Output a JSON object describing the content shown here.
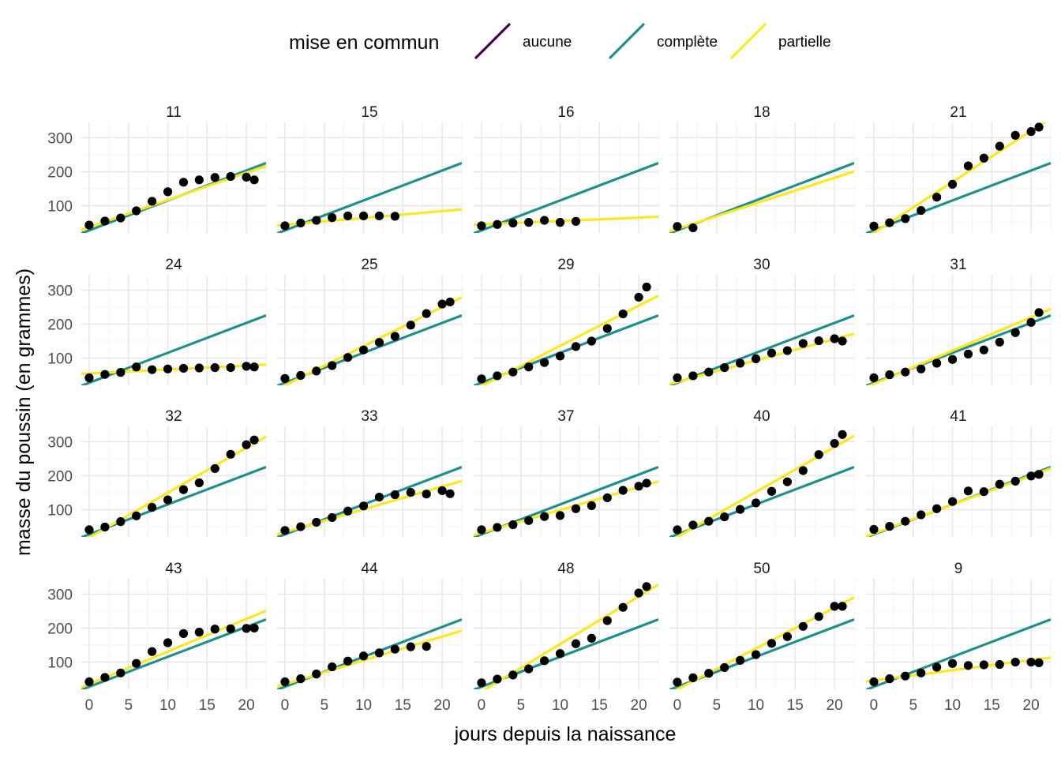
{
  "chart_data": {
    "type": "scatter",
    "facet_order": [
      "11",
      "15",
      "16",
      "18",
      "21",
      "24",
      "25",
      "29",
      "30",
      "31",
      "32",
      "33",
      "37",
      "40",
      "41",
      "43",
      "44",
      "48",
      "50",
      "9"
    ],
    "xlabel": "jours depuis la naissance",
    "ylabel": "masse du poussin (en grammes)",
    "xlim": [
      -1,
      22.5
    ],
    "ylim": [
      20,
      345
    ],
    "x_ticks": [
      0,
      5,
      10,
      15,
      20
    ],
    "y_ticks": [
      100,
      200,
      300
    ],
    "grid": true,
    "legend": {
      "title": "mise en commun",
      "position": "top",
      "entries": [
        {
          "label": "aucune",
          "color": "#440154"
        },
        {
          "label": "complète",
          "color": "#21908C"
        },
        {
          "label": "partielle",
          "color": "#FDE725"
        }
      ]
    },
    "complete_line": {
      "intercept": 27.5,
      "slope": 8.8
    },
    "facets": [
      {
        "chick": "11",
        "x": [
          0,
          2,
          4,
          6,
          8,
          10,
          12,
          14,
          16,
          18,
          20,
          21
        ],
        "y": [
          43,
          55,
          64,
          85,
          113,
          141,
          169,
          176,
          183,
          186,
          184,
          176
        ],
        "partial_line": {
          "intercept": 37,
          "slope": 8.0
        }
      },
      {
        "chick": "15",
        "x": [
          0,
          2,
          4,
          6,
          8,
          10,
          12,
          14
        ],
        "y": [
          41,
          49,
          57,
          65,
          70,
          70,
          70,
          69
        ],
        "partial_line": {
          "intercept": 44,
          "slope": 2.0
        }
      },
      {
        "chick": "16",
        "x": [
          0,
          2,
          4,
          6,
          8,
          10,
          12
        ],
        "y": [
          41,
          45,
          49,
          51,
          57,
          51,
          54
        ],
        "partial_line": {
          "intercept": 45,
          "slope": 1.0
        }
      },
      {
        "chick": "18",
        "x": [
          0,
          2
        ],
        "y": [
          39,
          35
        ],
        "partial_line": {
          "intercept": 32,
          "slope": 7.5
        }
      },
      {
        "chick": "21",
        "x": [
          0,
          2,
          4,
          6,
          8,
          10,
          12,
          14,
          16,
          18,
          20,
          21
        ],
        "y": [
          40,
          50,
          62,
          86,
          125,
          163,
          217,
          240,
          275,
          307,
          318,
          331
        ],
        "partial_line": {
          "intercept": 20,
          "slope": 15.0
        }
      },
      {
        "chick": "24",
        "x": [
          0,
          2,
          4,
          6,
          8,
          10,
          12,
          14,
          16,
          18,
          20,
          21
        ],
        "y": [
          42,
          52,
          58,
          74,
          66,
          68,
          70,
          71,
          72,
          72,
          76,
          74
        ],
        "partial_line": {
          "intercept": 55,
          "slope": 1.15
        }
      },
      {
        "chick": "25",
        "x": [
          0,
          2,
          4,
          6,
          8,
          10,
          12,
          14,
          16,
          18,
          20,
          21
        ],
        "y": [
          40,
          49,
          62,
          78,
          102,
          124,
          146,
          164,
          197,
          231,
          259,
          265
        ],
        "partial_line": {
          "intercept": 20,
          "slope": 11.5
        }
      },
      {
        "chick": "29",
        "x": [
          0,
          2,
          4,
          6,
          8,
          10,
          12,
          14,
          16,
          18,
          20,
          21
        ],
        "y": [
          39,
          48,
          59,
          74,
          87,
          106,
          134,
          150,
          187,
          230,
          279,
          309
        ],
        "partial_line": {
          "intercept": 18,
          "slope": 11.8
        }
      },
      {
        "chick": "30",
        "x": [
          0,
          2,
          4,
          6,
          8,
          10,
          12,
          14,
          16,
          18,
          20,
          21
        ],
        "y": [
          42,
          48,
          59,
          72,
          85,
          98,
          115,
          122,
          143,
          151,
          157,
          150
        ],
        "partial_line": {
          "intercept": 30,
          "slope": 6.3
        }
      },
      {
        "chick": "31",
        "x": [
          0,
          2,
          4,
          6,
          8,
          10,
          12,
          14,
          16,
          18,
          20,
          21
        ],
        "y": [
          42,
          51,
          59,
          68,
          85,
          96,
          112,
          124,
          147,
          175,
          205,
          234
        ],
        "partial_line": {
          "intercept": 24,
          "slope": 9.8
        }
      },
      {
        "chick": "32",
        "x": [
          0,
          2,
          4,
          6,
          8,
          10,
          12,
          14,
          16,
          18,
          20,
          21
        ],
        "y": [
          41,
          49,
          65,
          82,
          107,
          129,
          159,
          179,
          221,
          263,
          291,
          305
        ],
        "partial_line": {
          "intercept": 18,
          "slope": 13.2
        }
      },
      {
        "chick": "33",
        "x": [
          0,
          2,
          4,
          6,
          8,
          10,
          12,
          14,
          16,
          18,
          20,
          21
        ],
        "y": [
          39,
          50,
          63,
          77,
          96,
          111,
          137,
          144,
          151,
          146,
          156,
          147
        ],
        "partial_line": {
          "intercept": 34,
          "slope": 6.7
        }
      },
      {
        "chick": "37",
        "x": [
          0,
          2,
          4,
          6,
          8,
          10,
          12,
          14,
          16,
          18,
          20,
          21
        ],
        "y": [
          41,
          48,
          56,
          68,
          80,
          83,
          103,
          112,
          135,
          157,
          169,
          178
        ],
        "partial_line": {
          "intercept": 32,
          "slope": 6.7
        }
      },
      {
        "chick": "40",
        "x": [
          0,
          2,
          4,
          6,
          8,
          10,
          12,
          14,
          16,
          18,
          20,
          21
        ],
        "y": [
          41,
          55,
          66,
          79,
          101,
          120,
          154,
          182,
          215,
          262,
          295,
          321
        ],
        "partial_line": {
          "intercept": 20,
          "slope": 13.2
        }
      },
      {
        "chick": "41",
        "x": [
          0,
          2,
          4,
          6,
          8,
          10,
          12,
          14,
          16,
          18,
          20,
          21
        ],
        "y": [
          42,
          51,
          66,
          85,
          103,
          124,
          155,
          153,
          175,
          184,
          199,
          204
        ],
        "partial_line": {
          "intercept": 30,
          "slope": 8.5
        }
      },
      {
        "chick": "43",
        "x": [
          0,
          2,
          4,
          6,
          8,
          10,
          12,
          14,
          16,
          18,
          20,
          21
        ],
        "y": [
          42,
          55,
          68,
          96,
          131,
          157,
          184,
          188,
          197,
          198,
          199,
          200
        ],
        "partial_line": {
          "intercept": 35,
          "slope": 9.6
        }
      },
      {
        "chick": "44",
        "x": [
          0,
          2,
          4,
          6,
          8,
          10,
          12,
          14,
          16,
          18
        ],
        "y": [
          42,
          51,
          65,
          86,
          103,
          118,
          127,
          138,
          145,
          146
        ],
        "partial_line": {
          "intercept": 35,
          "slope": 7.0
        }
      },
      {
        "chick": "48",
        "x": [
          0,
          2,
          4,
          6,
          8,
          10,
          12,
          14,
          16,
          18,
          20,
          21
        ],
        "y": [
          39,
          50,
          62,
          80,
          104,
          125,
          154,
          170,
          222,
          261,
          303,
          322
        ],
        "partial_line": {
          "intercept": 13,
          "slope": 14.0
        }
      },
      {
        "chick": "50",
        "x": [
          0,
          2,
          4,
          6,
          8,
          10,
          12,
          14,
          16,
          18,
          20,
          21
        ],
        "y": [
          41,
          54,
          67,
          84,
          105,
          122,
          155,
          175,
          205,
          234,
          264,
          264
        ],
        "partial_line": {
          "intercept": 20,
          "slope": 12.0
        }
      },
      {
        "chick": "9",
        "x": [
          0,
          2,
          4,
          6,
          8,
          10,
          12,
          14,
          16,
          18,
          20,
          21
        ],
        "y": [
          42,
          51,
          59,
          68,
          85,
          96,
          90,
          92,
          93,
          100,
          100,
          98
        ],
        "partial_line": {
          "intercept": 46,
          "slope": 3.0
        }
      }
    ]
  }
}
